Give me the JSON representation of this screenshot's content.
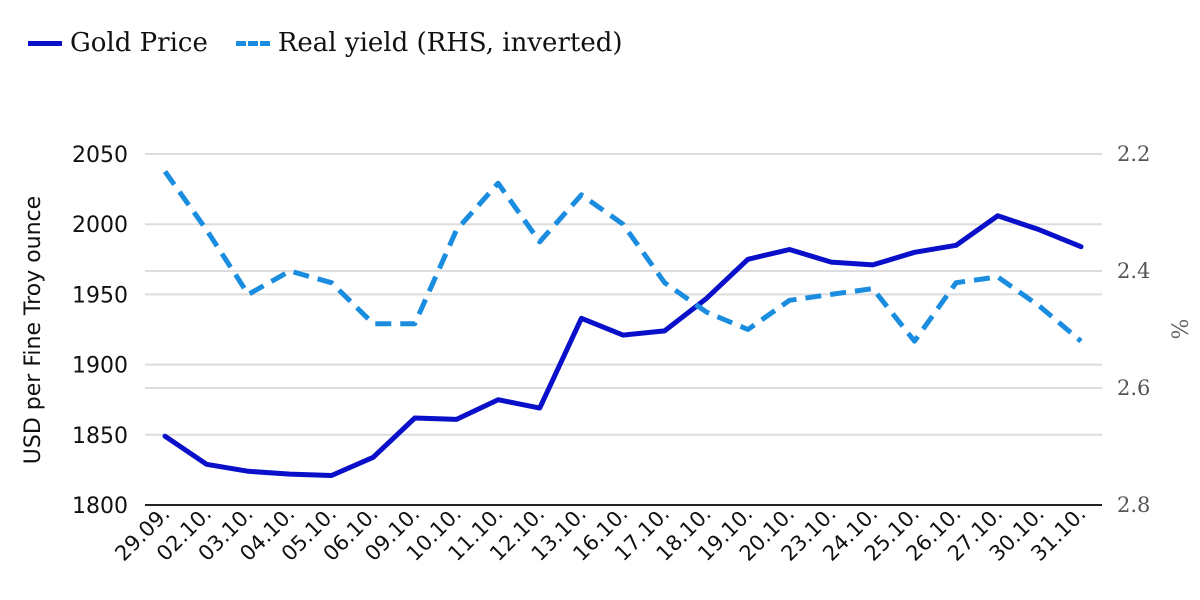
{
  "chart_data": {
    "type": "line",
    "title": "",
    "xlabel": "",
    "ylabel": "USD per Fine Troy ounce",
    "y2label": "%",
    "categories": [
      "29.09.",
      "02.10.",
      "03.10.",
      "04.10.",
      "05.10.",
      "06.10.",
      "09.10.",
      "10.10.",
      "11.10.",
      "12.10.",
      "13.10.",
      "16.10.",
      "17.10.",
      "18.10.",
      "19.10.",
      "20.10.",
      "23.10.",
      "24.10.",
      "25.10.",
      "26.10.",
      "27.10.",
      "30.10.",
      "31.10."
    ],
    "ylim": [
      1800,
      2050
    ],
    "yticks": [
      "1800",
      "1850",
      "1900",
      "1950",
      "2000",
      "2050"
    ],
    "y2lim": [
      2.8,
      2.2
    ],
    "y2_inverted": true,
    "y2ticks": [
      "2.2",
      "2.4",
      "2.6",
      "2.8"
    ],
    "grid": true,
    "legend_position": "top-left",
    "series": [
      {
        "name": "Gold Price",
        "axis": "left",
        "style": "solid",
        "color": "#0a0fc9",
        "values": [
          1849,
          1829,
          1824,
          1822,
          1821,
          1834,
          1862,
          1861,
          1875,
          1869,
          1933,
          1921,
          1924,
          1947,
          1975,
          1982,
          1973,
          1971,
          1980,
          1985,
          2006,
          1996,
          1984
        ]
      },
      {
        "name": "Real yield (RHS, inverted)",
        "axis": "right",
        "style": "dashed",
        "color": "#1a8de0",
        "values": [
          2.23,
          2.33,
          2.44,
          2.4,
          2.42,
          2.49,
          2.49,
          2.33,
          2.25,
          2.35,
          2.27,
          2.32,
          2.42,
          2.47,
          2.5,
          2.45,
          2.44,
          2.43,
          2.52,
          2.42,
          2.41,
          2.46,
          2.52
        ]
      }
    ]
  }
}
